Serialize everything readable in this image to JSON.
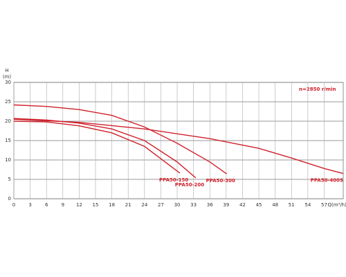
{
  "chart_data": {
    "type": "line",
    "ylabel": "H",
    "yunit": "(m)",
    "xlabel": "Q(m³/h)",
    "annotation": "n=2850 r/min",
    "xlim": [
      0,
      60.5
    ],
    "xticks": [
      0,
      3,
      6,
      9,
      12,
      15,
      18,
      21,
      24,
      27,
      30,
      33,
      36,
      39,
      42,
      45,
      48,
      51,
      54,
      57
    ],
    "ylim": [
      0,
      30
    ],
    "yticks": [
      0,
      5,
      10,
      15,
      20,
      25,
      30
    ],
    "grid": true,
    "color": "#d0202a",
    "series": [
      {
        "name": "PPA50-150",
        "color": "#d0202a",
        "x": [
          0,
          6,
          12,
          18,
          24,
          30.5
        ],
        "values": [
          20,
          19.8,
          18.8,
          17,
          13.5,
          6.6
        ]
      },
      {
        "name": "PPA50-200",
        "color": "#d0202a",
        "x": [
          0,
          6,
          12,
          18,
          24,
          30,
          33.4
        ],
        "values": [
          20.7,
          20.3,
          19.5,
          18,
          15,
          9.5,
          5.4
        ]
      },
      {
        "name": "PPA50-300",
        "color": "#d0202a",
        "x": [
          0,
          6,
          12,
          18,
          24,
          30,
          36,
          39.1
        ],
        "values": [
          24.2,
          23.8,
          23,
          21.5,
          18.5,
          14.3,
          9.5,
          6.4
        ]
      },
      {
        "name": "PPA50-400S",
        "color": "#d0202a",
        "x": [
          0,
          12,
          24,
          36,
          45,
          51,
          57,
          60.5
        ],
        "values": [
          20.5,
          19.7,
          18,
          15.5,
          13,
          10.5,
          7.8,
          6.5
        ]
      }
    ]
  }
}
